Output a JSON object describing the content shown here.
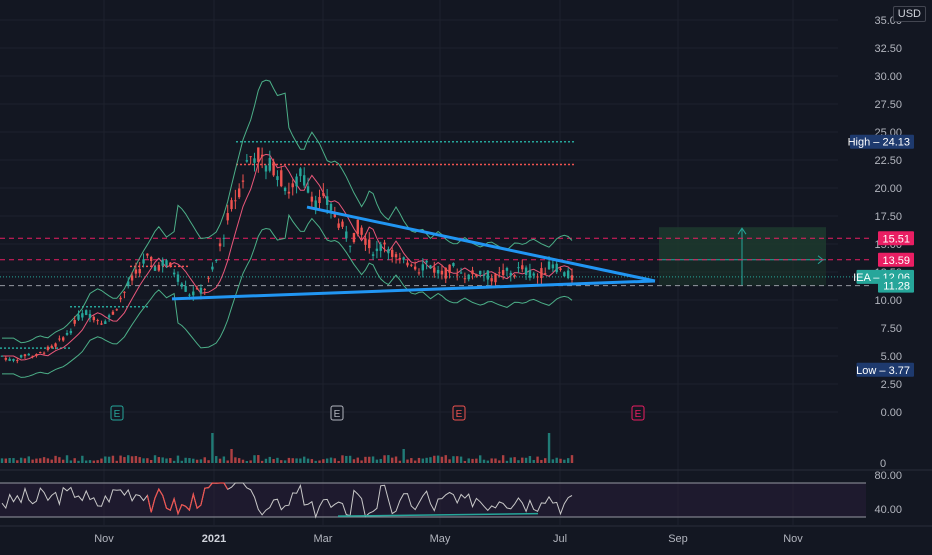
{
  "currency": "USD",
  "colors": {
    "background": "#131722",
    "grid": "#1e222d",
    "up": "#26a69a",
    "down": "#ef5350",
    "trendline": "#2196f3",
    "bollinger": "#4caf88",
    "ma": "#e9577a",
    "resistance_dotted": "#ef5350",
    "high_dotted": "#26a69a",
    "rsi_line": "#c8c8c8",
    "rsi_band": "#2a1e3a",
    "projection_box": "#1d3a2e",
    "label_high_low": "#1e3a6e",
    "label_pink": "#e91e63",
    "label_green": "#26a69a",
    "axis_text": "#b2b5be"
  },
  "chart_data": {
    "type": "candlestick",
    "price_axis": {
      "ticks": [
        "35.00",
        "32.50",
        "30.00",
        "27.50",
        "25.00",
        "22.50",
        "20.00",
        "17.50",
        "15.00",
        "12.50",
        "10.00",
        "7.50",
        "5.00",
        "2.50",
        "0.00"
      ],
      "range": [
        0,
        35
      ]
    },
    "time_axis": {
      "ticks": [
        "Nov",
        "2021",
        "Mar",
        "May",
        "Jul",
        "Sep",
        "Nov"
      ]
    },
    "price_labels": [
      {
        "text": "High",
        "value": "24.13",
        "kind": "high_low"
      },
      {
        "text": "",
        "value": "15.51",
        "kind": "pink"
      },
      {
        "text": "",
        "value": "13.59",
        "kind": "pink"
      },
      {
        "text": "IEA",
        "value": "12.06",
        "kind": "green"
      },
      {
        "text": "",
        "value": "11.28",
        "kind": "green"
      },
      {
        "text": "Low",
        "value": "3.77",
        "kind": "high_low"
      }
    ],
    "earnings_markers": [
      {
        "label": "E",
        "month": "Nov",
        "color": "#26a69a"
      },
      {
        "label": "E",
        "month": "Mar",
        "color": "#b2b5be"
      },
      {
        "label": "E",
        "month": "May",
        "color": "#ef5350"
      },
      {
        "label": "E",
        "month": "Sep",
        "color": "#e91e63"
      }
    ],
    "volume_axis": {
      "ticks": [
        "0"
      ]
    },
    "rsi": {
      "ticks": [
        "80.00",
        "40.00"
      ],
      "upper": 70,
      "lower": 30
    },
    "horizontal_levels": [
      24.13,
      22.1,
      15.51,
      13.59,
      12.06,
      11.28
    ],
    "triangle": {
      "upper_start": 18.3,
      "lower_start": 10.1,
      "apex": 11.7
    },
    "projection": {
      "entry": 13.59,
      "target": 16.5,
      "stop": 11.28
    },
    "price_path": [
      5.0,
      4.6,
      4.8,
      5.2,
      5.0,
      5.5,
      5.8,
      6.5,
      7.2,
      8.5,
      8.9,
      8.4,
      8.0,
      8.8,
      10.2,
      11.5,
      12.6,
      13.8,
      12.9,
      13.4,
      12.8,
      11.7,
      10.6,
      10.7,
      11.2,
      13.0,
      15.8,
      18.4,
      20.1,
      22.8,
      23.1,
      21.8,
      22.0,
      20.6,
      19.5,
      21.2,
      20.2,
      18.7,
      18.9,
      17.8,
      16.4,
      15.2,
      16.8,
      15.0,
      14.2,
      15.3,
      14.0,
      13.2,
      13.6,
      12.8,
      13.4,
      12.6,
      12.3,
      12.9,
      12.4,
      12.1,
      12.6,
      12.2,
      11.9,
      12.5,
      12.3,
      12.8,
      12.4,
      12.1,
      12.9,
      13.1,
      12.4,
      12.0
    ]
  }
}
